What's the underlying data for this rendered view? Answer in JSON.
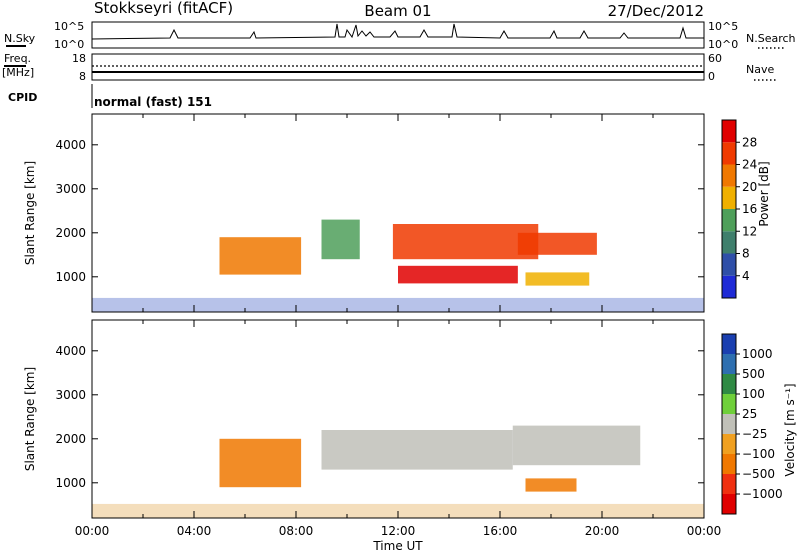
{
  "header": {
    "station": "Stokkseyri (fitACF)",
    "beam": "Beam 01",
    "date": "27/Dec/2012"
  },
  "nsky": {
    "left_label": "N.Sky",
    "right_label": "N.Search",
    "tick_top": "10^5",
    "tick_bottom": "10^0"
  },
  "freq": {
    "label_line1": "Freq.",
    "label_line2": "[MHz]",
    "right_label": "Nave",
    "left_ticks": [
      "18",
      "8"
    ],
    "right_ticks": [
      "60",
      "0"
    ]
  },
  "cpid": {
    "label": "CPID",
    "mode": "normal (fast) 151"
  },
  "colors": {
    "power_scale": [
      "#1f2bd6",
      "#2f4fa8",
      "#3f7f6c",
      "#4f9f5a",
      "#f0b000",
      "#f07800",
      "#f03a00",
      "#e00000"
    ],
    "velocity_scale": [
      "#1a3fb0",
      "#2e6fb0",
      "#2f8a44",
      "#6fcf3a",
      "#c0c0b8",
      "#f0a020",
      "#f07800",
      "#f03010",
      "#e00000"
    ]
  },
  "chart_data": [
    {
      "type": "heatmap",
      "title": "Power",
      "ylabel": "Slant Range [km]",
      "xlabel": "",
      "ylim": [
        200,
        4700
      ],
      "yticks": [
        "1000",
        "2000",
        "3000",
        "4000"
      ],
      "colorbar_label": "Power [dB]",
      "colorbar_ticks": [
        "4",
        "8",
        "12",
        "16",
        "20",
        "24",
        "28"
      ],
      "regions": [
        {
          "start_h": 5.0,
          "end_h": 8.2,
          "range_lo": 1050,
          "range_hi": 1900,
          "value": 22
        },
        {
          "start_h": 9.0,
          "end_h": 10.5,
          "range_lo": 1400,
          "range_hi": 2300,
          "value": 14
        },
        {
          "start_h": 12.0,
          "end_h": 16.7,
          "range_lo": 850,
          "range_hi": 1250,
          "value": 28
        },
        {
          "start_h": 11.8,
          "end_h": 17.5,
          "range_lo": 1400,
          "range_hi": 2200,
          "value": 24
        },
        {
          "start_h": 16.7,
          "end_h": 19.8,
          "range_lo": 1500,
          "range_hi": 2000,
          "value": 25
        },
        {
          "start_h": 17.0,
          "end_h": 19.5,
          "range_lo": 800,
          "range_hi": 1100,
          "value": 16
        }
      ]
    },
    {
      "type": "heatmap",
      "title": "Velocity",
      "ylabel": "Slant Range [km]",
      "xlabel": "Time UT",
      "ylim": [
        200,
        4700
      ],
      "yticks": [
        "1000",
        "2000",
        "3000",
        "4000"
      ],
      "xticks": [
        "00:00",
        "04:00",
        "08:00",
        "12:00",
        "16:00",
        "20:00",
        "00:00"
      ],
      "colorbar_label": "Velocity [m s⁻¹]",
      "colorbar_ticks": [
        "1000",
        "500",
        "100",
        "25",
        "−25",
        "−100",
        "−500",
        "−1000"
      ],
      "regions": [
        {
          "start_h": 5.0,
          "end_h": 8.2,
          "range_lo": 900,
          "range_hi": 2000,
          "value": -120
        },
        {
          "start_h": 9.0,
          "end_h": 16.5,
          "range_lo": 1300,
          "range_hi": 2200,
          "value": 0
        },
        {
          "start_h": 16.5,
          "end_h": 21.5,
          "range_lo": 1400,
          "range_hi": 2300,
          "value": 0
        },
        {
          "start_h": 17.0,
          "end_h": 19.0,
          "range_lo": 800,
          "range_hi": 1100,
          "value": -200
        }
      ]
    }
  ]
}
